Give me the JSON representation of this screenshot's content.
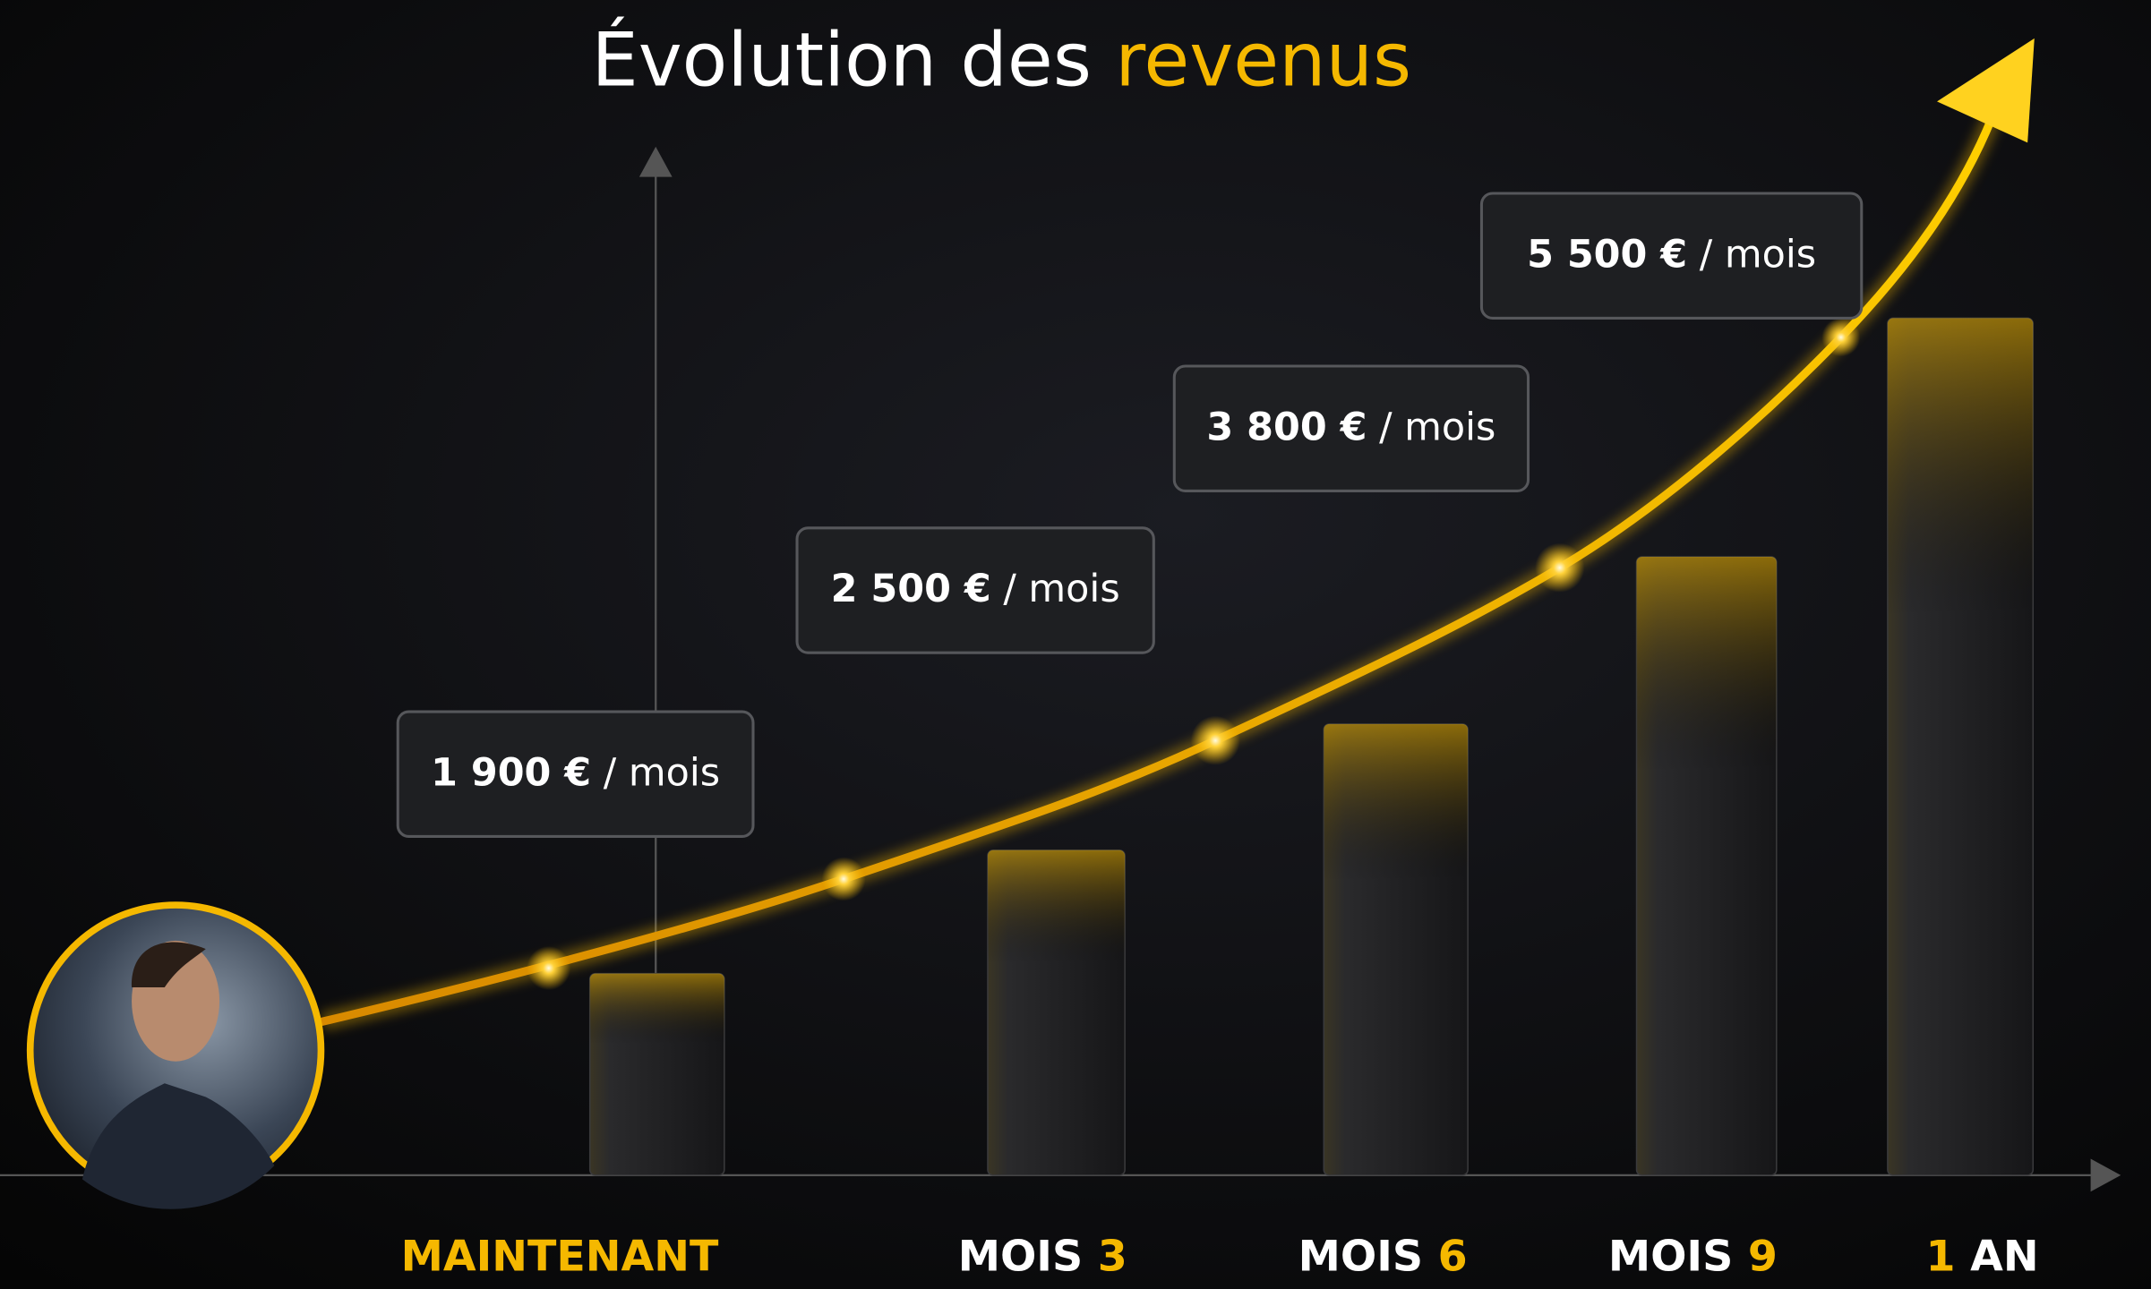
{
  "chart_data": {
    "type": "bar",
    "title": [
      "Évolution des",
      "revenus"
    ],
    "categories": [
      [
        "MAINTENANT"
      ],
      [
        "MOIS",
        "3"
      ],
      [
        "MOIS",
        "6"
      ],
      [
        "MOIS",
        "9"
      ],
      [
        "1",
        "AN"
      ]
    ],
    "callouts": [
      {
        "value": 1900,
        "label": "1 900 €",
        "unit": "/ mois"
      },
      {
        "value": 2500,
        "label": "2 500 €",
        "unit": "/ mois"
      },
      {
        "value": 3800,
        "label": "3 800 €",
        "unit": "/ mois"
      },
      {
        "value": 5500,
        "label": "5 500 €",
        "unit": "/ mois"
      }
    ],
    "color": "#f5b800"
  }
}
